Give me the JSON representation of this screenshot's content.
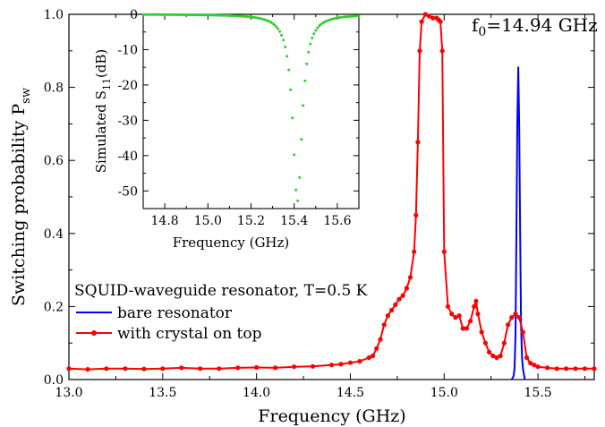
{
  "chart_data": [
    {
      "id": "main",
      "type": "line",
      "xlabel": "Frequency (GHz)",
      "ylabel_main": "Switching probability P",
      "ylabel_sub": "sw",
      "xlim": [
        13.0,
        15.8
      ],
      "ylim": [
        0.0,
        1.0
      ],
      "xticks": [
        13.0,
        13.5,
        14.0,
        14.5,
        15.0,
        15.5
      ],
      "xtick_labels": [
        "13.0",
        "13.5",
        "14.0",
        "14.5",
        "15.0",
        "15.5"
      ],
      "yticks": [
        0.0,
        0.2,
        0.4,
        0.6,
        0.8,
        1.0
      ],
      "ytick_labels": [
        "0.0",
        "0.2",
        "0.4",
        "0.6",
        "0.8",
        "1.0"
      ],
      "annotation": {
        "main": "f",
        "sub": "0",
        "rest": "=14.94 GHz"
      },
      "legend": {
        "title": "SQUID-waveguide resonator, T=0.5 K",
        "position": "lower-left"
      },
      "series": [
        {
          "name": "bare resonator",
          "color": "#0000ff",
          "marker": "none",
          "x": [
            15.36,
            15.37,
            15.375,
            15.38,
            15.385,
            15.39,
            15.395,
            15.4,
            15.405,
            15.41,
            15.415,
            15.42,
            15.43
          ],
          "y": [
            0.0,
            0.01,
            0.03,
            0.12,
            0.4,
            0.7,
            0.855,
            0.7,
            0.4,
            0.15,
            0.06,
            0.03,
            0.0
          ]
        },
        {
          "name": "with crystal on top",
          "color": "#ff0000",
          "marker": "circle",
          "x": [
            13.0,
            13.1,
            13.2,
            13.3,
            13.4,
            13.5,
            13.6,
            13.7,
            13.8,
            13.9,
            14.0,
            14.1,
            14.2,
            14.3,
            14.4,
            14.45,
            14.5,
            14.55,
            14.6,
            14.62,
            14.64,
            14.66,
            14.68,
            14.7,
            14.72,
            14.74,
            14.76,
            14.78,
            14.8,
            14.82,
            14.84,
            14.85,
            14.86,
            14.87,
            14.88,
            14.9,
            14.92,
            14.94,
            14.96,
            14.97,
            14.98,
            14.99,
            15.0,
            15.02,
            15.04,
            15.06,
            15.08,
            15.1,
            15.12,
            15.14,
            15.16,
            15.17,
            15.18,
            15.2,
            15.22,
            15.24,
            15.26,
            15.28,
            15.3,
            15.32,
            15.34,
            15.36,
            15.38,
            15.4,
            15.42,
            15.44,
            15.46,
            15.48,
            15.5,
            15.55,
            15.6,
            15.65,
            15.7,
            15.75,
            15.8
          ],
          "y": [
            0.03,
            0.028,
            0.03,
            0.03,
            0.029,
            0.03,
            0.032,
            0.03,
            0.03,
            0.032,
            0.033,
            0.032,
            0.035,
            0.036,
            0.04,
            0.042,
            0.046,
            0.05,
            0.06,
            0.065,
            0.085,
            0.11,
            0.15,
            0.175,
            0.19,
            0.205,
            0.22,
            0.23,
            0.25,
            0.28,
            0.35,
            0.45,
            0.65,
            0.9,
            0.98,
            1.0,
            0.995,
            0.99,
            0.99,
            0.985,
            0.98,
            0.9,
            0.35,
            0.2,
            0.18,
            0.17,
            0.175,
            0.14,
            0.14,
            0.16,
            0.2,
            0.215,
            0.18,
            0.13,
            0.1,
            0.075,
            0.065,
            0.06,
            0.065,
            0.1,
            0.15,
            0.17,
            0.18,
            0.17,
            0.13,
            0.06,
            0.045,
            0.04,
            0.035,
            0.032,
            0.03,
            0.03,
            0.03,
            0.03,
            0.03
          ]
        }
      ]
    },
    {
      "id": "inset",
      "type": "scatter",
      "xlabel": "Frequency (GHz)",
      "ylabel_main": "Simulated S",
      "ylabel_sub": "11",
      "ylabel_rest": "(dB)",
      "xlim": [
        14.7,
        15.7
      ],
      "ylim": [
        -55,
        0
      ],
      "xticks": [
        14.8,
        15.0,
        15.2,
        15.4,
        15.6
      ],
      "xtick_labels": [
        "14.8",
        "15.0",
        "15.2",
        "15.4",
        "15.6"
      ],
      "yticks": [
        0,
        -10,
        -20,
        -30,
        -40,
        -50
      ],
      "ytick_labels": [
        "0",
        "-10",
        "-20",
        "-30",
        "-40",
        "-50"
      ],
      "series": [
        {
          "color": "#33cc33",
          "marker": "dot",
          "f0": 15.415,
          "depth_db": 53.0,
          "width_ghz": 0.026,
          "x_start": 14.7,
          "x_end": 15.7,
          "n_points": 121
        }
      ]
    }
  ]
}
